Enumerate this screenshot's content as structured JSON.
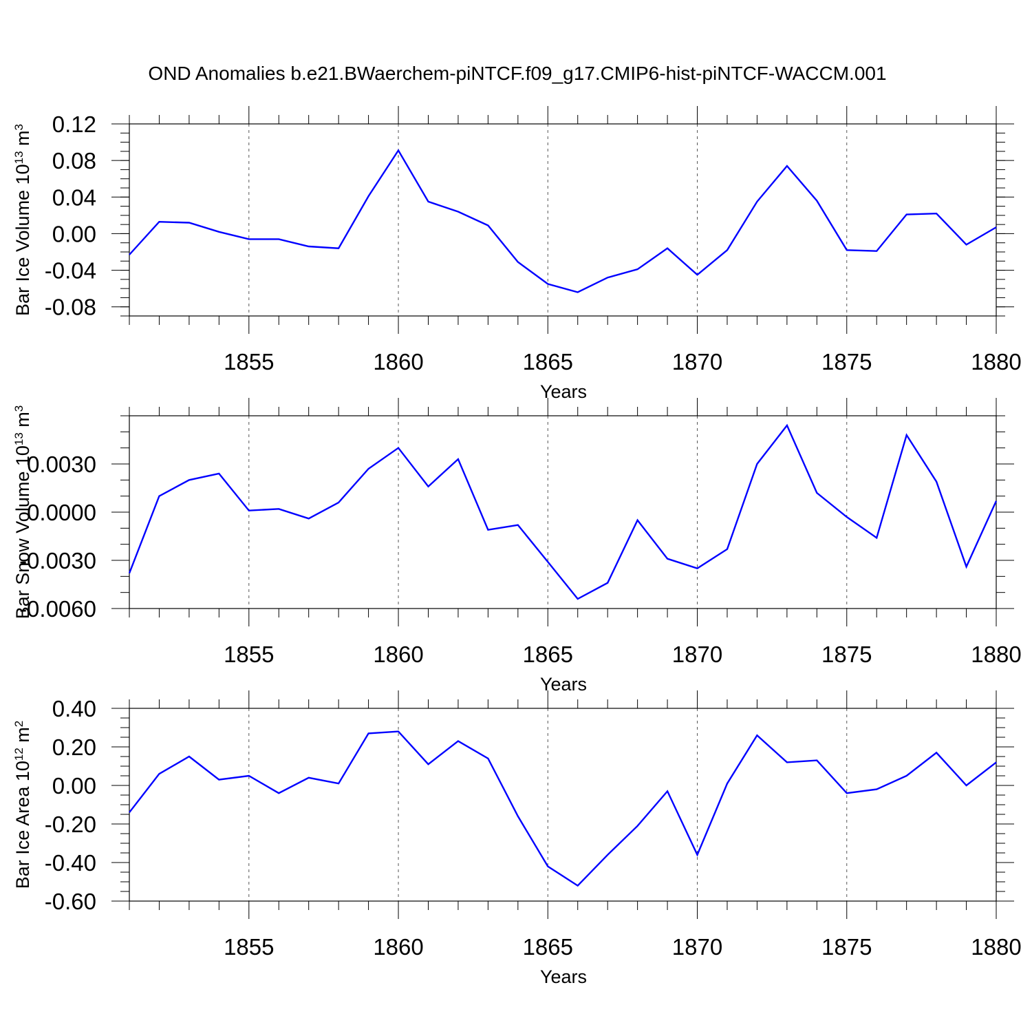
{
  "title": "OND Anomalies b.e21.BWaerchem-piNTCF.f09_g17.CMIP6-hist-piNTCF-WACCM.001",
  "chart_data": [
    {
      "type": "line",
      "title": "",
      "xlabel": "Years",
      "ylabel": "Bar Ice Volume 10",
      "ylabel_sup1": "13",
      "ylabel_unit": " m",
      "ylabel_sup2": "3",
      "xlim": [
        1851,
        1880
      ],
      "ylim": [
        -0.09,
        0.12
      ],
      "yticks": [
        "0.12",
        "0.08",
        "0.04",
        "0.00",
        "-0.04",
        "-0.08"
      ],
      "ytick_values": [
        0.12,
        0.08,
        0.04,
        0.0,
        -0.04,
        -0.08
      ],
      "yminor_step": 0.01,
      "xticks": [
        "1855",
        "1860",
        "1865",
        "1870",
        "1875",
        "1880"
      ],
      "xtick_values": [
        1855,
        1860,
        1865,
        1870,
        1875,
        1880
      ],
      "grid": "x-dashed",
      "color": "#0000ff",
      "x": [
        1851,
        1852,
        1853,
        1854,
        1855,
        1856,
        1857,
        1858,
        1859,
        1860,
        1861,
        1862,
        1863,
        1864,
        1865,
        1866,
        1867,
        1868,
        1869,
        1870,
        1871,
        1872,
        1873,
        1874,
        1875,
        1876,
        1877,
        1878,
        1879,
        1880
      ],
      "values": [
        -0.023,
        0.013,
        0.012,
        0.002,
        -0.006,
        -0.006,
        -0.014,
        -0.016,
        0.041,
        0.091,
        0.035,
        0.024,
        0.009,
        -0.031,
        -0.055,
        -0.064,
        -0.048,
        -0.039,
        -0.016,
        -0.045,
        -0.018,
        0.035,
        0.074,
        0.036,
        -0.018,
        -0.019,
        0.021,
        0.022,
        -0.012,
        0.007
      ]
    },
    {
      "type": "line",
      "title": "",
      "xlabel": "Years",
      "ylabel": "Bar Snow Volume 10",
      "ylabel_sup1": "13",
      "ylabel_unit": " m",
      "ylabel_sup2": "3",
      "xlim": [
        1851,
        1880
      ],
      "ylim": [
        -0.006,
        0.006
      ],
      "yticks": [
        "0.0030",
        "0.0000",
        "-0.0030",
        "-0.0060"
      ],
      "ytick_values": [
        0.003,
        0.0,
        -0.003,
        -0.006
      ],
      "yminor_step": 0.001,
      "xticks": [
        "1855",
        "1860",
        "1865",
        "1870",
        "1875",
        "1880"
      ],
      "xtick_values": [
        1855,
        1860,
        1865,
        1870,
        1875,
        1880
      ],
      "grid": "x-dashed",
      "color": "#0000ff",
      "x": [
        1851,
        1852,
        1853,
        1854,
        1855,
        1856,
        1857,
        1858,
        1859,
        1860,
        1861,
        1862,
        1863,
        1864,
        1865,
        1866,
        1867,
        1868,
        1869,
        1870,
        1871,
        1872,
        1873,
        1874,
        1875,
        1876,
        1877,
        1878,
        1879,
        1880
      ],
      "values": [
        -0.0038,
        0.001,
        0.002,
        0.0024,
        0.0001,
        0.0002,
        -0.0004,
        0.0006,
        0.0027,
        0.004,
        0.0016,
        0.0033,
        -0.0011,
        -0.0008,
        -0.0031,
        -0.0054,
        -0.0044,
        -0.0005,
        -0.0029,
        -0.0035,
        -0.0023,
        0.003,
        0.0054,
        0.0012,
        -0.0003,
        -0.0016,
        0.0048,
        0.0019,
        -0.0034,
        0.0007
      ]
    },
    {
      "type": "line",
      "title": "",
      "xlabel": "Years",
      "ylabel": "Bar Ice Area 10",
      "ylabel_sup1": "12",
      "ylabel_unit": " m",
      "ylabel_sup2": "2",
      "xlim": [
        1851,
        1880
      ],
      "ylim": [
        -0.6,
        0.4
      ],
      "yticks": [
        "0.40",
        "0.20",
        "0.00",
        "-0.20",
        "-0.40",
        "-0.60"
      ],
      "ytick_values": [
        0.4,
        0.2,
        0.0,
        -0.2,
        -0.4,
        -0.6
      ],
      "yminor_step": 0.05,
      "xticks": [
        "1855",
        "1860",
        "1865",
        "1870",
        "1875",
        "1880"
      ],
      "xtick_values": [
        1855,
        1860,
        1865,
        1870,
        1875,
        1880
      ],
      "grid": "x-dashed",
      "color": "#0000ff",
      "x": [
        1851,
        1852,
        1853,
        1854,
        1855,
        1856,
        1857,
        1858,
        1859,
        1860,
        1861,
        1862,
        1863,
        1864,
        1865,
        1866,
        1867,
        1868,
        1869,
        1870,
        1871,
        1872,
        1873,
        1874,
        1875,
        1876,
        1877,
        1878,
        1879,
        1880
      ],
      "values": [
        -0.14,
        0.06,
        0.15,
        0.03,
        0.05,
        -0.04,
        0.04,
        0.01,
        0.27,
        0.28,
        0.11,
        0.23,
        0.14,
        -0.16,
        -0.42,
        -0.52,
        -0.36,
        -0.21,
        -0.03,
        -0.36,
        0.01,
        0.26,
        0.12,
        0.13,
        -0.04,
        -0.02,
        0.05,
        0.17,
        0.0,
        0.12
      ]
    }
  ]
}
